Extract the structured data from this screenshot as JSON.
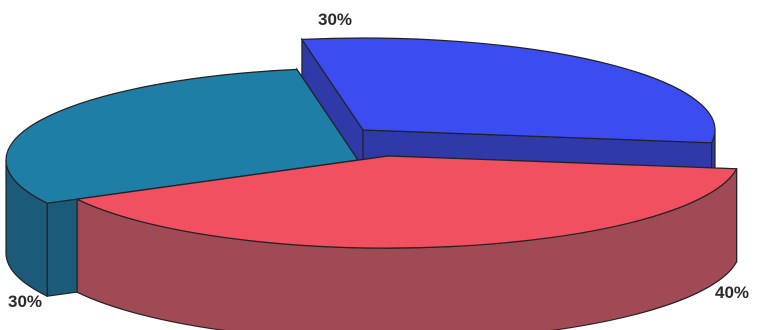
{
  "chart_data": {
    "type": "pie",
    "style": "3d-exploded",
    "title": "",
    "legend": "none",
    "slices": [
      {
        "label": "30%",
        "value": 30,
        "color": "#3b4cf0",
        "side_color": "#2f3aa8"
      },
      {
        "label": "40%",
        "value": 40,
        "color": "#f0505f",
        "side_color": "#a04a55"
      },
      {
        "label": "30%",
        "value": 30,
        "color": "#1e7ea6",
        "side_color": "#1b5a78"
      }
    ]
  }
}
